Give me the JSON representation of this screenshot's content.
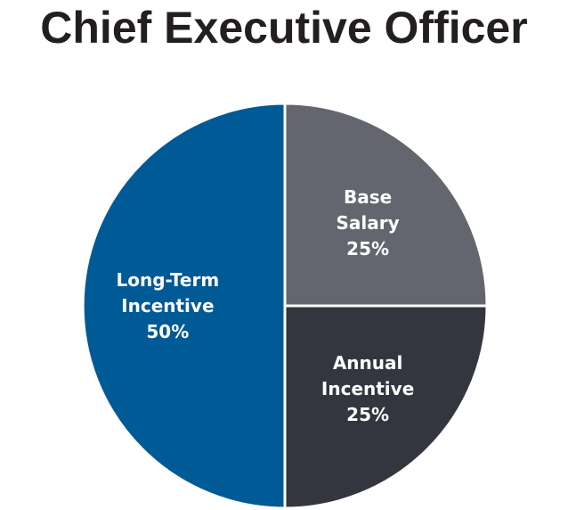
{
  "chart_data": {
    "type": "pie",
    "title": "Chief Executive Officer",
    "slices": [
      {
        "label_lines": [
          "Base",
          "Salary",
          "25%"
        ],
        "name": "Base Salary",
        "value": 25,
        "color": "#63666e"
      },
      {
        "label_lines": [
          "Annual",
          "Incentive",
          "25%"
        ],
        "name": "Annual Incentive",
        "value": 25,
        "color": "#34363f"
      },
      {
        "label_lines": [
          "Long-Term",
          "Incentive",
          "50%"
        ],
        "name": "Long-Term Incentive",
        "value": 50,
        "color": "#005a96"
      }
    ],
    "start_angle": "12 o'clock",
    "direction": "clockwise",
    "slice_border_color": "#ffffff",
    "legend": "none"
  }
}
